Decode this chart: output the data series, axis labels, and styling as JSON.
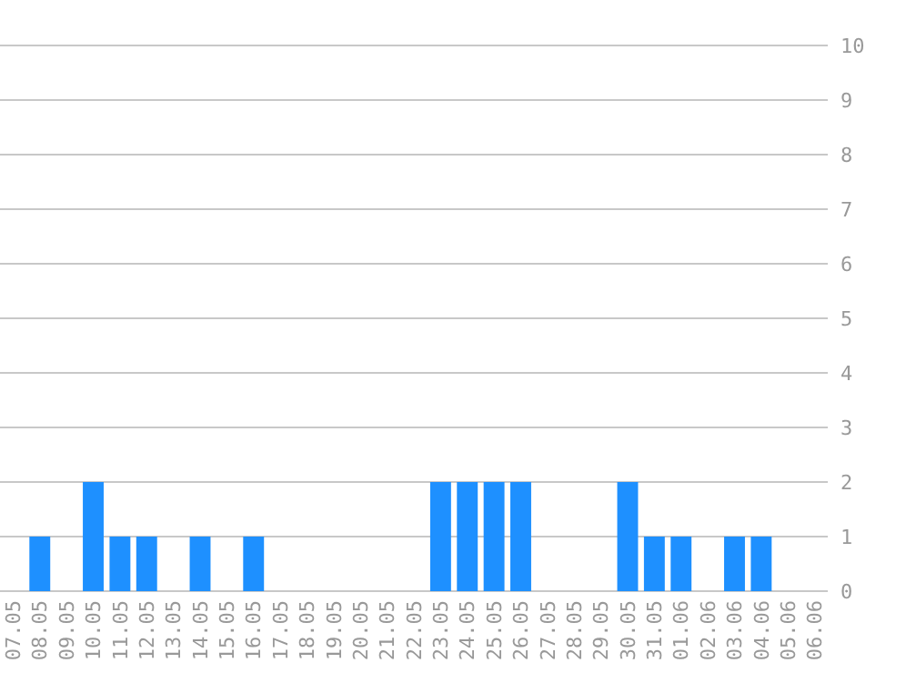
{
  "chart_data": {
    "type": "bar",
    "categories": [
      "07.05",
      "08.05",
      "09.05",
      "10.05",
      "11.05",
      "12.05",
      "13.05",
      "14.05",
      "15.05",
      "16.05",
      "17.05",
      "18.05",
      "19.05",
      "20.05",
      "21.05",
      "22.05",
      "23.05",
      "24.05",
      "25.05",
      "26.05",
      "27.05",
      "28.05",
      "29.05",
      "30.05",
      "31.05",
      "01.06",
      "02.06",
      "03.06",
      "04.06",
      "05.06",
      "06.06"
    ],
    "values": [
      0,
      1,
      0,
      2,
      1,
      1,
      0,
      1,
      0,
      1,
      0,
      0,
      0,
      0,
      0,
      0,
      2,
      2,
      2,
      2,
      0,
      0,
      0,
      2,
      1,
      1,
      0,
      1,
      1,
      0,
      0
    ],
    "color": "#1e90ff",
    "ylim": [
      0,
      10
    ],
    "yticks": [
      0,
      1,
      2,
      3,
      4,
      5,
      6,
      7,
      8,
      9,
      10
    ],
    "grid": "y"
  }
}
